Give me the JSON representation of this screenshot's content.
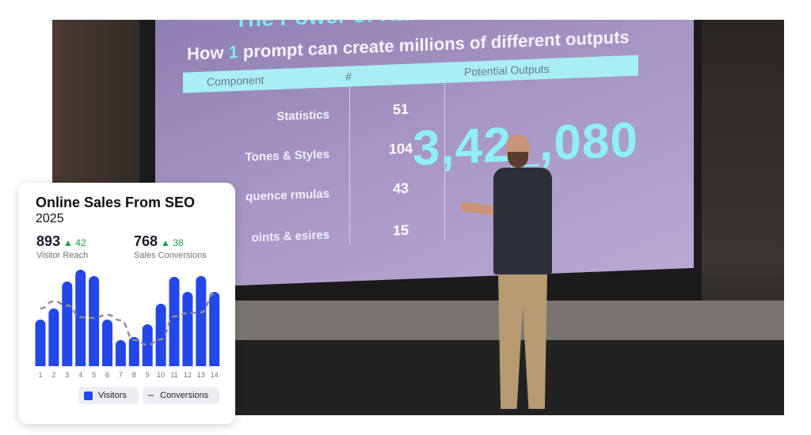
{
  "photo": {
    "slide": {
      "title_partial": "The Power of Randomi",
      "subtitle_pre": "How ",
      "subtitle_highlight": "1",
      "subtitle_post": " prompt can create millions of different outputs",
      "headers": [
        "Component",
        "#",
        "Potential Outputs"
      ],
      "rows": [
        {
          "label": "Statistics",
          "count": "51"
        },
        {
          "label": "Tones & Styles",
          "count": "104"
        },
        {
          "label": "quence rmulas",
          "count": "43"
        },
        {
          "label": "oints & esires",
          "count": "15"
        }
      ],
      "total": "3,42_,080"
    }
  },
  "card": {
    "title": "Online Sales From SEO",
    "year": "2025",
    "kpis": [
      {
        "value": "893",
        "delta": "42",
        "label": "Visitor Reach"
      },
      {
        "value": "768",
        "delta": "38",
        "label": "Sales Conversions"
      }
    ],
    "delta_icon": "triangle-up-icon",
    "colors": {
      "visitors": "#2347e8",
      "conversions": "#8e8f9a",
      "delta": "#1f9a45"
    }
  },
  "chart_data": {
    "type": "bar",
    "title": "Online Sales From SEO",
    "subtitle": "2025",
    "categories": [
      "1",
      "2",
      "3",
      "4",
      "5",
      "6",
      "7",
      "8",
      "9",
      "10",
      "11",
      "12",
      "13",
      "14"
    ],
    "series": [
      {
        "name": "Visitors",
        "type": "bar",
        "values": [
          59,
          73,
          107,
          122,
          114,
          59,
          33,
          37,
          53,
          79,
          113,
          94,
          114,
          94
        ]
      },
      {
        "name": "Conversions",
        "type": "line",
        "style": "dashed",
        "smooth": true,
        "values": [
          73,
          82,
          77,
          62,
          61,
          65,
          58,
          33,
          27,
          34,
          63,
          67,
          68,
          92
        ]
      }
    ],
    "xlabel": "",
    "ylabel": "",
    "ylim": [
      0,
      125
    ],
    "grid": false,
    "legend": "bottom-right"
  }
}
